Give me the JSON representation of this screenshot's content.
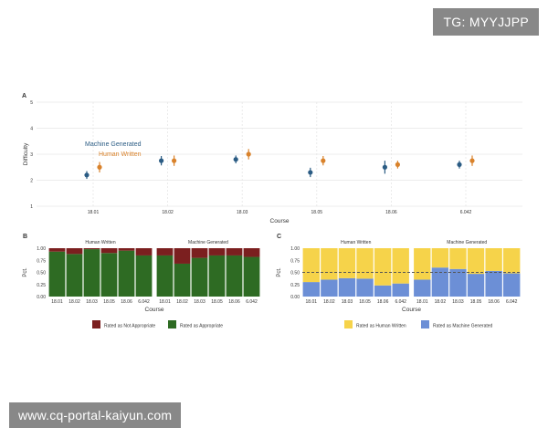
{
  "watermark_top": "TG: MYYJJPP",
  "watermark_bottom": "www.cq-portal-kaiyun.com",
  "colors": {
    "machine": "#2b5c84",
    "human": "#d9822b",
    "not_appropriate": "#7b1f1f",
    "appropriate": "#2e6b23",
    "rated_human": "#f6d34a",
    "rated_machine": "#6c8fd6",
    "grid": "#e6e6e6",
    "text": "#333333",
    "panel_bg": "#f1f1f1"
  },
  "chart_data": [
    {
      "panel": "A",
      "type": "scatter",
      "xlabel": "Course",
      "ylabel": "Difficulty",
      "ylim": [
        1,
        5
      ],
      "yticks": [
        "1",
        "2",
        "3",
        "4",
        "5"
      ],
      "categories": [
        "18.01",
        "18.02",
        "18.03",
        "18.05",
        "18.06",
        "6.042"
      ],
      "legend_position": "top-left",
      "series": [
        {
          "name": "Machine Generated",
          "color_key": "machine",
          "values": [
            2.2,
            2.75,
            2.8,
            2.3,
            2.5,
            2.6
          ],
          "errors": [
            0.15,
            0.18,
            0.15,
            0.18,
            0.25,
            0.15
          ]
        },
        {
          "name": "Human Written",
          "color_key": "human",
          "values": [
            2.5,
            2.75,
            3.0,
            2.75,
            2.6,
            2.75
          ],
          "errors": [
            0.2,
            0.2,
            0.2,
            0.18,
            0.15,
            0.2
          ]
        }
      ]
    },
    {
      "panel": "B",
      "type": "bar",
      "stacked": true,
      "xlabel": "Course",
      "ylabel": "Pct.",
      "ylim": [
        0,
        1
      ],
      "yticks": [
        "0.00",
        "0.25",
        "0.50",
        "0.75",
        "1.00"
      ],
      "categories": [
        "18.01",
        "18.02",
        "18.03",
        "18.05",
        "18.06",
        "6.042"
      ],
      "facets": [
        {
          "title": "Human Written",
          "series": [
            {
              "name": "Rated as Appropriate",
              "color_key": "appropriate",
              "values": [
                0.93,
                0.88,
                0.98,
                0.9,
                0.95,
                0.85
              ]
            },
            {
              "name": "Rated as Not Appropriate",
              "color_key": "not_appropriate",
              "values": [
                0.07,
                0.12,
                0.02,
                0.1,
                0.05,
                0.15
              ]
            }
          ]
        },
        {
          "title": "Machine Generated",
          "series": [
            {
              "name": "Rated as Appropriate",
              "color_key": "appropriate",
              "values": [
                0.85,
                0.68,
                0.8,
                0.85,
                0.85,
                0.82
              ]
            },
            {
              "name": "Rated as Not Appropriate",
              "color_key": "not_appropriate",
              "values": [
                0.15,
                0.32,
                0.2,
                0.15,
                0.15,
                0.18
              ]
            }
          ]
        }
      ],
      "legend": [
        "Rated as Not Appropriate",
        "Rated as Appropriate"
      ],
      "legend_keys": [
        "not_appropriate",
        "appropriate"
      ],
      "legend_position": "bottom"
    },
    {
      "panel": "C",
      "type": "bar",
      "stacked": true,
      "xlabel": "Course",
      "ylabel": "Pct.",
      "ylim": [
        0,
        1
      ],
      "yticks": [
        "0.00",
        "0.25",
        "0.50",
        "0.75",
        "1.00"
      ],
      "reference_line": 0.5,
      "categories": [
        "18.01",
        "18.02",
        "18.03",
        "18.05",
        "18.06",
        "6.042"
      ],
      "facets": [
        {
          "title": "Human Written",
          "series": [
            {
              "name": "Rated as Machine Generated",
              "color_key": "rated_machine",
              "values": [
                0.3,
                0.35,
                0.38,
                0.37,
                0.23,
                0.27
              ]
            },
            {
              "name": "Rated as Human Written",
              "color_key": "rated_human",
              "values": [
                0.7,
                0.65,
                0.62,
                0.63,
                0.77,
                0.73
              ]
            }
          ]
        },
        {
          "title": "Machine Generated",
          "series": [
            {
              "name": "Rated as Machine Generated",
              "color_key": "rated_machine",
              "values": [
                0.35,
                0.6,
                0.57,
                0.47,
                0.53,
                0.48
              ]
            },
            {
              "name": "Rated as Human Written",
              "color_key": "rated_human",
              "values": [
                0.65,
                0.4,
                0.43,
                0.53,
                0.47,
                0.52
              ]
            }
          ]
        }
      ],
      "legend": [
        "Rated as Human Written",
        "Rated as Machine Generated"
      ],
      "legend_keys": [
        "rated_human",
        "rated_machine"
      ],
      "legend_position": "bottom"
    }
  ]
}
